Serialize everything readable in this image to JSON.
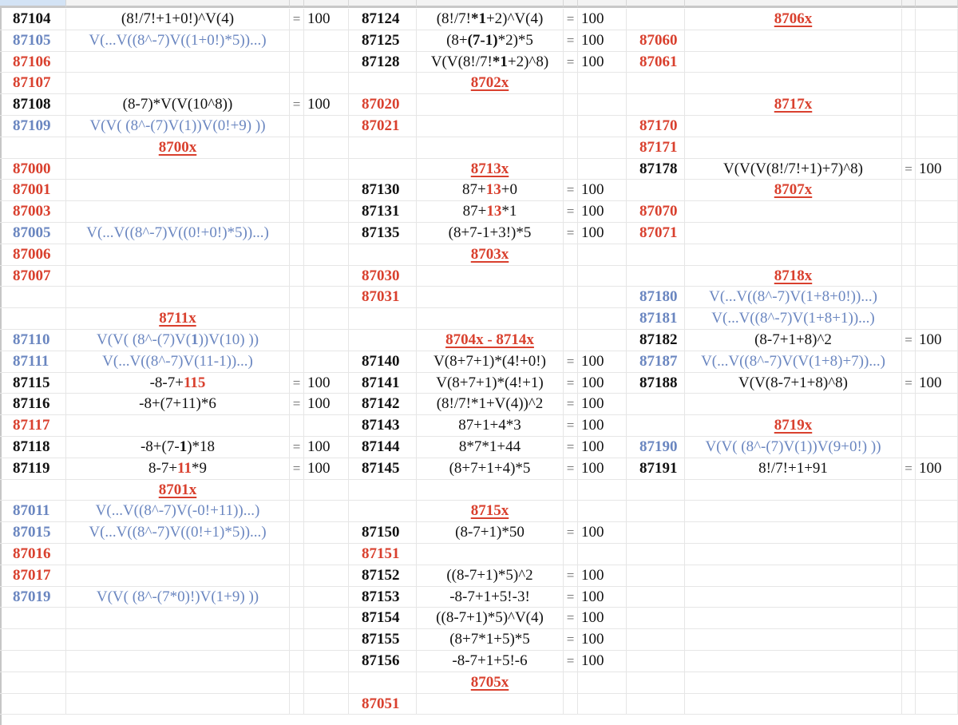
{
  "colors": {
    "black": "#111111",
    "blue": "#6a86c0",
    "red": "#d9402e"
  },
  "eq_sign": "=",
  "blocks": [
    {
      "rows": [
        {
          "code": "87104",
          "color": "black",
          "expr": [
            {
              "t": "(8!/7!+1+0!)^V(4)"
            }
          ],
          "val": "100"
        },
        {
          "code": "87105",
          "color": "blue",
          "expr": [
            {
              "t": "V(...V((8^-7)V((1+0!)*5))...)"
            }
          ]
        },
        {
          "code": "87106",
          "color": "red"
        },
        {
          "code": "87107",
          "color": "red"
        },
        {
          "code": "87108",
          "color": "black",
          "expr": [
            {
              "t": "(8-7)*V(V(10^8))"
            }
          ],
          "val": "100"
        },
        {
          "code": "87109",
          "color": "blue",
          "expr": [
            {
              "t": "V(V( (8^-(7)V(1))V(0!+9) ))"
            }
          ]
        },
        {
          "header": "8700x"
        },
        {
          "code": "87000",
          "color": "red"
        },
        {
          "code": "87001",
          "color": "red"
        },
        {
          "code": "87003",
          "color": "red"
        },
        {
          "code": "87005",
          "color": "blue",
          "expr": [
            {
              "t": "V(...V((8^-7)V((0!+0!)*5))...)"
            }
          ]
        },
        {
          "code": "87006",
          "color": "red"
        },
        {
          "code": "87007",
          "color": "red"
        },
        {},
        {
          "header": "8711x"
        },
        {
          "code": "87110",
          "color": "blue",
          "expr": [
            {
              "t": "V(V( (8^-(7)V("
            },
            {
              "t": "1",
              "s": "b"
            },
            {
              "t": "))V(10) ))"
            }
          ]
        },
        {
          "code": "87111",
          "color": "blue",
          "expr": [
            {
              "t": "V(...V((8^-7)V(11-1))...)"
            }
          ]
        },
        {
          "code": "87115",
          "color": "black",
          "expr": [
            {
              "t": "-8-7+"
            },
            {
              "t": "115",
              "s": "r"
            }
          ],
          "val": "100"
        },
        {
          "code": "87116",
          "color": "black",
          "expr": [
            {
              "t": "-8+(7+11)*6"
            }
          ],
          "val": "100"
        },
        {
          "code": "87117",
          "color": "red"
        },
        {
          "code": "87118",
          "color": "black",
          "expr": [
            {
              "t": "-8+(7-"
            },
            {
              "t": "1",
              "s": "b"
            },
            {
              "t": ")*18"
            }
          ],
          "val": "100"
        },
        {
          "code": "87119",
          "color": "black",
          "expr": [
            {
              "t": "8-7+"
            },
            {
              "t": "11",
              "s": "r"
            },
            {
              "t": "*9"
            }
          ],
          "val": "100"
        },
        {
          "header": "8701x"
        },
        {
          "code": "87011",
          "color": "blue",
          "expr": [
            {
              "t": "V(...V((8^-7)V(-0!+11))...)"
            }
          ]
        },
        {
          "code": "87015",
          "color": "blue",
          "expr": [
            {
              "t": "V(...V((8^-7)V((0!+1)*5))...)"
            }
          ]
        },
        {
          "code": "87016",
          "color": "red"
        },
        {
          "code": "87017",
          "color": "red"
        },
        {
          "code": "87019",
          "color": "blue",
          "expr": [
            {
              "t": "V(V(  (8^-(7*0)!)V(1+9) ))"
            }
          ]
        },
        {},
        {},
        {},
        {},
        {}
      ]
    },
    {
      "rows": [
        {
          "code": "87124",
          "color": "black",
          "expr": [
            {
              "t": "(8!/7!"
            },
            {
              "t": "*1",
              "s": "b"
            },
            {
              "t": "+2)^V(4)"
            }
          ],
          "val": "100"
        },
        {
          "code": "87125",
          "color": "black",
          "expr": [
            {
              "t": "(8+"
            },
            {
              "t": "(7-1)",
              "s": "b"
            },
            {
              "t": "*2)*5"
            }
          ],
          "val": "100"
        },
        {
          "code": "87128",
          "color": "black",
          "expr": [
            {
              "t": "V(V(8!/7!"
            },
            {
              "t": "*1",
              "s": "b"
            },
            {
              "t": "+2)^8)"
            }
          ],
          "val": "100"
        },
        {
          "header": "8702x"
        },
        {
          "code": "87020",
          "color": "red"
        },
        {
          "code": "87021",
          "color": "red"
        },
        {},
        {
          "header": "8713x"
        },
        {
          "code": "87130",
          "color": "black",
          "expr": [
            {
              "t": "87+"
            },
            {
              "t": "13",
              "s": "r"
            },
            {
              "t": "+0"
            }
          ],
          "val": "100"
        },
        {
          "code": "87131",
          "color": "black",
          "expr": [
            {
              "t": "87+"
            },
            {
              "t": "13",
              "s": "r"
            },
            {
              "t": "*1"
            }
          ],
          "val": "100"
        },
        {
          "code": "87135",
          "color": "black",
          "expr": [
            {
              "t": "(8+7-1+3!)*5"
            }
          ],
          "val": "100"
        },
        {
          "header": "8703x"
        },
        {
          "code": "87030",
          "color": "red"
        },
        {
          "code": "87031",
          "color": "red"
        },
        {},
        {
          "header": "8704x - 8714x"
        },
        {
          "code": "87140",
          "color": "black",
          "expr": [
            {
              "t": "V(8+7+1)*(4!+0!)"
            }
          ],
          "val": "100"
        },
        {
          "code": "87141",
          "color": "black",
          "expr": [
            {
              "t": "V(8+7+1)*(4!+1)"
            }
          ],
          "val": "100"
        },
        {
          "code": "87142",
          "color": "black",
          "expr": [
            {
              "t": "(8!/7!*1+V(4))^2"
            }
          ],
          "val": "100"
        },
        {
          "code": "87143",
          "color": "black",
          "expr": [
            {
              "t": "87+1+4*3"
            }
          ],
          "val": "100"
        },
        {
          "code": "87144",
          "color": "black",
          "expr": [
            {
              "t": "8*7*1+44"
            }
          ],
          "val": "100"
        },
        {
          "code": "87145",
          "color": "black",
          "expr": [
            {
              "t": "(8+7+1+4)*5"
            }
          ],
          "val": "100"
        },
        {},
        {
          "header": "8715x"
        },
        {
          "code": "87150",
          "color": "black",
          "expr": [
            {
              "t": "(8-7+1)*50"
            }
          ],
          "val": "100"
        },
        {
          "code": "87151",
          "color": "red"
        },
        {
          "code": "87152",
          "color": "black",
          "expr": [
            {
              "t": "((8-7+1)*5)^2"
            }
          ],
          "val": "100"
        },
        {
          "code": "87153",
          "color": "black",
          "expr": [
            {
              "t": "-8-7+1+5!-3!"
            }
          ],
          "val": "100"
        },
        {
          "code": "87154",
          "color": "black",
          "expr": [
            {
              "t": "((8-7+1)*5)^V(4)"
            }
          ],
          "val": "100"
        },
        {
          "code": "87155",
          "color": "black",
          "expr": [
            {
              "t": "(8+7*1+5)*5"
            }
          ],
          "val": "100"
        },
        {
          "code": "87156",
          "color": "black",
          "expr": [
            {
              "t": "-8-7+1+5!-6"
            }
          ],
          "val": "100"
        },
        {
          "header": "8705x"
        },
        {
          "code": "87051",
          "color": "red"
        }
      ]
    },
    {
      "rows": [
        {
          "header": "8706x"
        },
        {
          "code": "87060",
          "color": "red"
        },
        {
          "code": "87061",
          "color": "red"
        },
        {},
        {
          "header": "8717x"
        },
        {
          "code": "87170",
          "color": "red"
        },
        {
          "code": "87171",
          "color": "red"
        },
        {
          "code": "87178",
          "color": "black",
          "expr": [
            {
              "t": "V(V(V(8!/7!+1)+7)^8)"
            }
          ],
          "val": "100"
        },
        {
          "header": "8707x"
        },
        {
          "code": "87070",
          "color": "red"
        },
        {
          "code": "87071",
          "color": "red"
        },
        {},
        {
          "header": "8718x"
        },
        {
          "code": "87180",
          "color": "blue",
          "expr": [
            {
              "t": "V(...V((8^-7)V(1+8+0!))...)"
            }
          ]
        },
        {
          "code": "87181",
          "color": "blue",
          "expr": [
            {
              "t": "V(...V((8^-7)V(1+8+1))...)"
            }
          ]
        },
        {
          "code": "87182",
          "color": "black",
          "expr": [
            {
              "t": "(8-7+1+8)^2"
            }
          ],
          "val": "100"
        },
        {
          "code": "87187",
          "color": "blue",
          "expr": [
            {
              "t": "V(...V((8^-7)V(V(1+8)+7))...)"
            }
          ]
        },
        {
          "code": "87188",
          "color": "black",
          "expr": [
            {
              "t": "V(V(8-7+1+8)^8)"
            }
          ],
          "val": "100"
        },
        {},
        {
          "header": "8719x"
        },
        {
          "code": "87190",
          "color": "blue",
          "expr": [
            {
              "t": "V(V( (8^-(7)V(1))V(9+0!) ))"
            }
          ]
        },
        {
          "code": "87191",
          "color": "black",
          "expr": [
            {
              "t": "8!/7!+1+91"
            }
          ],
          "val": "100"
        },
        {},
        {},
        {},
        {},
        {},
        {},
        {},
        {},
        {},
        {},
        {}
      ]
    }
  ]
}
